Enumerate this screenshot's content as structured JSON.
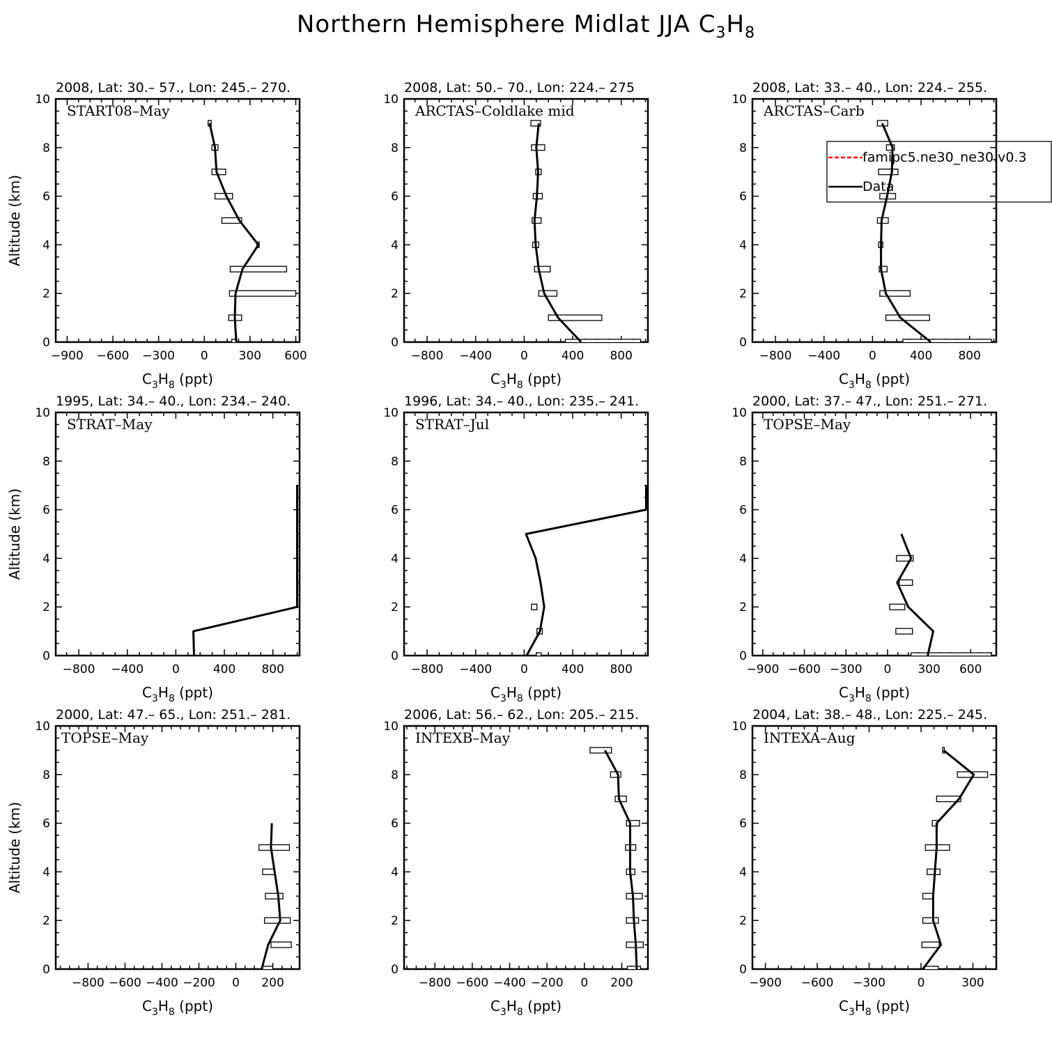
{
  "figure": {
    "title_main": "Northern Hemisphere Midlat JJA C",
    "title_sub1": "3",
    "title_mid": "H",
    "title_sub2": "8",
    "xlabel_main": "C",
    "xlabel_sub1": "3",
    "xlabel_mid": "H",
    "xlabel_sub2": "8",
    "xlabel_unit": " (ppt)",
    "ylabel": "Altitude (km)",
    "legend": [
      {
        "label": "famipc5.ne30_ne30.v0.3",
        "color": "#ff0000",
        "dashed": true
      },
      {
        "label": "Data",
        "color": "#000000",
        "dashed": false
      }
    ]
  },
  "chart_data": [
    {
      "type": "line",
      "header": "2008, Lat:  30.– 57., Lon: 245.– 270.",
      "campaign": "START08–May",
      "xlim": [
        -975,
        625
      ],
      "xticks": [
        -900,
        -600,
        -300,
        0,
        300,
        600
      ],
      "ylim": [
        0,
        10
      ],
      "yticks": [
        0,
        2,
        4,
        6,
        8,
        10
      ],
      "series": [
        {
          "name": "Data",
          "alt": [
            0,
            1,
            2,
            3,
            4,
            5,
            6,
            7,
            8,
            9
          ],
          "values": [
            210,
            200,
            205,
            250,
            355,
            230,
            145,
            80,
            70,
            35
          ]
        }
      ],
      "bars": [
        [
          180,
          210
        ],
        [
          160,
          245
        ],
        [
          165,
          600
        ],
        [
          170,
          540
        ],
        [
          345,
          360
        ],
        [
          115,
          245
        ],
        [
          70,
          185
        ],
        [
          50,
          140
        ],
        [
          50,
          90
        ],
        [
          25,
          45
        ]
      ]
    },
    {
      "type": "line",
      "header": "2008, Lat:  50.– 70., Lon: 224.– 275",
      "campaign": "ARCTAS–Coldlake mid",
      "xlim": [
        -990,
        1020
      ],
      "xticks": [
        -800,
        -400,
        0,
        400,
        800
      ],
      "ylim": [
        0,
        10
      ],
      "yticks": [
        0,
        2,
        4,
        6,
        8,
        10
      ],
      "series": [
        {
          "name": "Data",
          "alt": [
            0,
            1,
            2,
            3,
            4,
            5,
            6,
            7,
            8,
            9
          ],
          "values": [
            470,
            280,
            165,
            120,
            95,
            85,
            105,
            115,
            100,
            120
          ]
        }
      ],
      "bars": [
        [
          340,
          960
        ],
        [
          200,
          640
        ],
        [
          120,
          270
        ],
        [
          85,
          215
        ],
        [
          70,
          120
        ],
        [
          65,
          140
        ],
        [
          75,
          150
        ],
        [
          95,
          140
        ],
        [
          60,
          170
        ],
        [
          55,
          135
        ]
      ]
    },
    {
      "type": "line",
      "header": "2008, Lat:  33.– 40., Lon: 224.– 255.",
      "campaign": "ARCTAS–Carb",
      "xlim": [
        -990,
        1020
      ],
      "xticks": [
        -800,
        -400,
        0,
        400,
        800
      ],
      "ylim": [
        0,
        10
      ],
      "yticks": [
        0,
        2,
        4,
        6,
        8,
        10
      ],
      "series": [
        {
          "name": "Data",
          "alt": [
            0,
            1,
            2,
            3,
            4,
            5,
            6,
            7,
            8,
            9
          ],
          "values": [
            480,
            230,
            110,
            70,
            70,
            75,
            120,
            160,
            165,
            80
          ]
        }
      ],
      "bars": [
        [
          250,
          980
        ],
        [
          110,
          470
        ],
        [
          60,
          310
        ],
        [
          55,
          120
        ],
        [
          50,
          85
        ],
        [
          40,
          130
        ],
        [
          60,
          190
        ],
        [
          50,
          210
        ],
        [
          115,
          180
        ],
        [
          40,
          125
        ]
      ]
    },
    {
      "type": "line",
      "header": "1995, Lat: 34.– 40., Lon: 234.– 240.",
      "campaign": "STRAT–May",
      "xlim": [
        -990,
        1020
      ],
      "xticks": [
        -800,
        -400,
        0,
        400,
        800
      ],
      "ylim": [
        0,
        10
      ],
      "yticks": [
        0,
        2,
        4,
        6,
        8,
        10
      ],
      "series": [
        {
          "name": "Data",
          "alt": [
            0,
            1,
            2,
            7
          ],
          "values": [
            150,
            145,
            1000,
            1000
          ]
        }
      ],
      "bars": []
    },
    {
      "type": "line",
      "header": "1996, Lat: 34.– 40., Lon: 235.– 241.",
      "campaign": "STRAT–Jul",
      "xlim": [
        -990,
        1020
      ],
      "xticks": [
        -800,
        -400,
        0,
        400,
        800
      ],
      "ylim": [
        0,
        10
      ],
      "yticks": [
        0,
        2,
        4,
        6,
        8,
        10
      ],
      "series": [
        {
          "name": "Data",
          "alt": [
            0,
            1,
            2,
            3,
            4,
            5,
            6,
            7
          ],
          "values": [
            20,
            130,
            165,
            135,
            95,
            15,
            1005,
            1005
          ]
        }
      ],
      "bars": [
        [
          100,
          140
        ],
        [
          105,
          150
        ],
        [
          60,
          105
        ]
      ]
    },
    {
      "type": "line",
      "header": "2000, Lat: 37.– 47., Lon: 251.– 271.",
      "campaign": "TOPSE–May",
      "xlim": [
        -975,
        785
      ],
      "xticks": [
        -900,
        -600,
        -300,
        0,
        300,
        600
      ],
      "ylim": [
        0,
        10
      ],
      "yticks": [
        0,
        2,
        4,
        6,
        8,
        10
      ],
      "series": [
        {
          "name": "Data",
          "alt": [
            0,
            1,
            2,
            3,
            4,
            5
          ],
          "values": [
            290,
            330,
            150,
            70,
            170,
            100
          ]
        }
      ],
      "bars": [
        [
          170,
          750
        ],
        [
          60,
          180
        ],
        [
          15,
          125
        ],
        [
          85,
          180
        ],
        [
          65,
          185
        ]
      ]
    },
    {
      "type": "line",
      "header": "2000, Lat: 47.– 65., Lon: 251.– 281.",
      "campaign": "TOPSE–May",
      "xlim": [
        -975,
        345
      ],
      "xticks": [
        -800,
        -600,
        -400,
        -200,
        0,
        200
      ],
      "ylim": [
        0,
        10
      ],
      "yticks": [
        0,
        2,
        4,
        6,
        8,
        10
      ],
      "series": [
        {
          "name": "Data",
          "alt": [
            0,
            1,
            2,
            3,
            4,
            5,
            6
          ],
          "values": [
            140,
            175,
            240,
            230,
            210,
            190,
            195
          ]
        }
      ],
      "bars": [
        [
          145,
          200
        ],
        [
          190,
          300
        ],
        [
          155,
          295
        ],
        [
          160,
          255
        ],
        [
          145,
          210
        ],
        [
          125,
          290
        ]
      ]
    },
    {
      "type": "line",
      "header": "2006, Lat: 56.– 62., Lon: 205.– 215.",
      "campaign": "INTEXB–May",
      "xlim": [
        -965,
        340
      ],
      "xticks": [
        -800,
        -600,
        -400,
        -200,
        0,
        200
      ],
      "ylim": [
        0,
        10
      ],
      "yticks": [
        0,
        2,
        4,
        6,
        8,
        10
      ],
      "series": [
        {
          "name": "Data",
          "alt": [
            0,
            1,
            2,
            3,
            4,
            5,
            6,
            7,
            8,
            9
          ],
          "values": [
            280,
            275,
            265,
            260,
            245,
            245,
            245,
            185,
            180,
            110
          ]
        }
      ],
      "bars": [
        [
          230,
          300
        ],
        [
          225,
          315
        ],
        [
          225,
          290
        ],
        [
          225,
          310
        ],
        [
          225,
          270
        ],
        [
          220,
          275
        ],
        [
          225,
          295
        ],
        [
          165,
          225
        ],
        [
          140,
          195
        ],
        [
          30,
          145
        ]
      ]
    },
    {
      "type": "line",
      "header": "2004, Lat: 38.– 48., Lon: 225.– 245.",
      "campaign": "INTEXA–Aug",
      "xlim": [
        -975,
        435
      ],
      "xticks": [
        -900,
        -600,
        -300,
        0,
        300
      ],
      "ylim": [
        0,
        10
      ],
      "yticks": [
        0,
        2,
        4,
        6,
        8,
        10
      ],
      "series": [
        {
          "name": "Data",
          "alt": [
            0,
            1,
            2,
            3,
            4,
            5,
            6,
            7,
            8,
            9
          ],
          "values": [
            10,
            115,
            70,
            70,
            80,
            90,
            90,
            220,
            305,
            130
          ]
        }
      ],
      "bars": [
        [
          20,
          100
        ],
        [
          5,
          105
        ],
        [
          10,
          100
        ],
        [
          10,
          70
        ],
        [
          35,
          110
        ],
        [
          25,
          165
        ],
        [
          65,
          95
        ],
        [
          90,
          230
        ],
        [
          210,
          385
        ],
        [
          125,
          135
        ]
      ]
    }
  ]
}
